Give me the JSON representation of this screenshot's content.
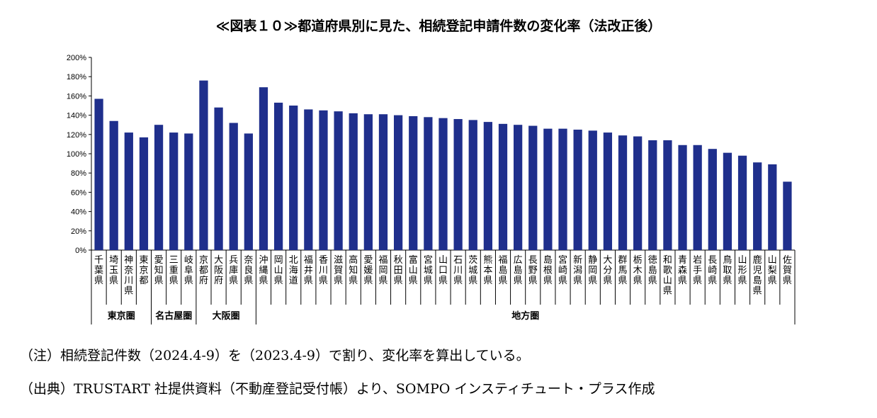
{
  "chart_data": {
    "type": "bar",
    "title": "≪図表１０≫都道府県別に見た、相続登記申請件数の変化率（法改正後）",
    "ylim": [
      0,
      200
    ],
    "yticks": [
      "0%",
      "20%",
      "40%",
      "60%",
      "80%",
      "100%",
      "120%",
      "140%",
      "160%",
      "180%",
      "200%"
    ],
    "categories": [
      "千葉県",
      "埼玉県",
      "神奈川県",
      "東京都",
      "愛知県",
      "三重県",
      "岐阜県",
      "京都府",
      "大阪府",
      "兵庫県",
      "奈良県",
      "沖縄県",
      "岡山県",
      "北海道",
      "福井県",
      "香川県",
      "滋賀県",
      "高知県",
      "愛媛県",
      "福岡県",
      "秋田県",
      "富山県",
      "宮城県",
      "山口県",
      "石川県",
      "茨城県",
      "熊本県",
      "福島県",
      "広島県",
      "長野県",
      "島根県",
      "宮崎県",
      "新潟県",
      "静岡県",
      "大分県",
      "群馬県",
      "栃木県",
      "徳島県",
      "和歌山県",
      "青森県",
      "岩手県",
      "長崎県",
      "鳥取県",
      "山形県",
      "鹿児島県",
      "山梨県",
      "佐賀県"
    ],
    "values": [
      157,
      134,
      122,
      117,
      130,
      122,
      121,
      176,
      148,
      132,
      121,
      169,
      153,
      150,
      146,
      145,
      144,
      142,
      141,
      141,
      140,
      139,
      138,
      137,
      136,
      135,
      133,
      131,
      130,
      129,
      126,
      126,
      125,
      124,
      122,
      119,
      118,
      114,
      114,
      109,
      109,
      105,
      101,
      98,
      91,
      89,
      71
    ],
    "color": "#1f2f8c",
    "groups": [
      {
        "label": "東京圏",
        "start": 0,
        "end": 3
      },
      {
        "label": "名古屋圏",
        "start": 4,
        "end": 6
      },
      {
        "label": "大阪圏",
        "start": 7,
        "end": 10
      },
      {
        "label": "地方圏",
        "start": 11,
        "end": 46
      }
    ]
  },
  "notes": [
    "（注）相続登記件数（2024.4-9）を（2023.4-9）で割り、変化率を算出している。",
    "（出典）TRUSTART 社提供資料（不動産登記受付帳）より、SOMPO インスティチュート・プラス作成"
  ]
}
